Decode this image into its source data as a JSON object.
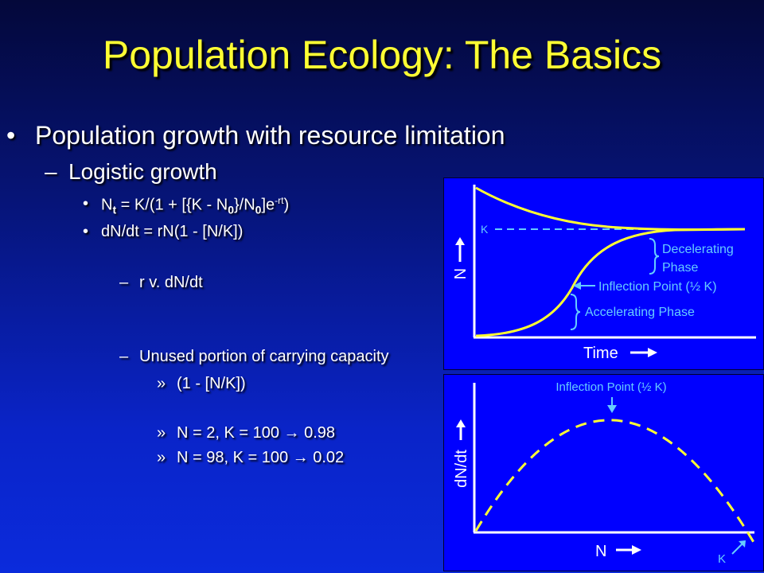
{
  "title": "Population Ecology: The Basics",
  "bullets": {
    "b1_marker": "•",
    "b1": "Population growth with resource limitation",
    "b2_marker": "–",
    "b2": "Logistic growth",
    "eq1_marker": "•",
    "eq1": {
      "a": "N",
      "a_sub": "t",
      "b": " = K/(1 + [{K - N",
      "b_sub": "0",
      "c": "}/N",
      "c_sub": "0",
      "d": "]e",
      "d_sup": "-rt",
      "e": ")"
    },
    "eq2_marker": "•",
    "eq2": "dN/dt = rN(1 - [N/K])",
    "b3_marker": "–",
    "b3": "r v. dN/dt",
    "b4_marker": "–",
    "b4": "Unused portion of carrying capacity",
    "s1_marker": "»",
    "s1": "(1 - [N/K])",
    "s2_marker": "»",
    "s2": "N = 2, K = 100 → 0.98",
    "s3_marker": "»",
    "s3": "N = 98, K = 100 → 0.02"
  },
  "top_chart": {
    "k_label": "K",
    "y_label": "N",
    "x_label": "Time",
    "decel_line1": "Decelerating",
    "decel_line2": "Phase",
    "inflection_label": "Inflection Point (½ K)",
    "accel_label": "Accelerating Phase",
    "curve_color": "#ffff33",
    "label_color": "#66ccff"
  },
  "bottom_chart": {
    "inflection_label": "Inflection Point (½ K)",
    "y_label": "dN/dt",
    "x_label": "N",
    "k_label": "K",
    "curve_color": "#ffff33",
    "label_color": "#66ccff"
  }
}
